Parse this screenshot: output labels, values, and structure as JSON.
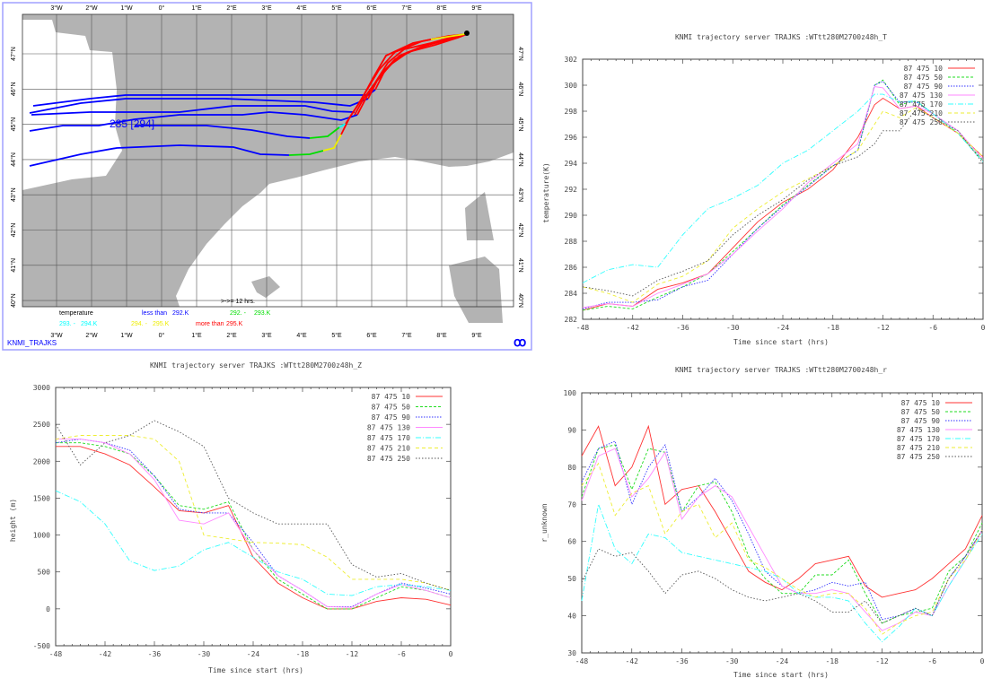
{
  "map": {
    "lon_labels": [
      "3°W",
      "2°W",
      "1°W",
      "0°",
      "1°E",
      "2°E",
      "3°E",
      "4°E",
      "5°E",
      "6°E",
      "7°E",
      "8°E",
      "9°E"
    ],
    "lat_labels": [
      "47°N",
      "46°N",
      "45°N",
      "44°N",
      "43°N",
      "42°N",
      "41°N",
      "40°N"
    ],
    "start_label": "285 [294]",
    "arrow_note": ">->= 12 hrs.",
    "legend": {
      "title": "temperature",
      "less_than": "less than",
      "less_than_value": "292.K",
      "range1": "292. -",
      "range1_end": "293.K",
      "range2": "293. -",
      "range2_end": "294.K",
      "range3": "294. -",
      "range3_end": "295.K",
      "more_than": "more than",
      "more_than_value": "295.K"
    },
    "footer": "KNMI_TRAJKS",
    "colors": {
      "land": "#b3b3b3",
      "sea": "#ffffff",
      "traj_low": "#0000ff",
      "traj_high": "#ff0000",
      "green": "#00dd00",
      "cyan": "#00ffff",
      "yellow": "#eeee00",
      "frame": "#a0a0ff"
    }
  },
  "legend_labels": [
    "87 475 10",
    "87 475 50",
    "87 475 90",
    "87 475 130",
    "87 475 170",
    "87 475 210",
    "87 475 250"
  ],
  "series_colors": [
    "#ff3333",
    "#22dd22",
    "#3333ff",
    "#ff88ff",
    "#33ffff",
    "#eeee33",
    "#555555"
  ],
  "chart_data": [
    {
      "type": "line",
      "title": "KNMI trajectory server TRAJKS :WTtt280M2700z48h_T",
      "xlabel": "Time since start (hrs)",
      "ylabel": "temperature(K)",
      "xlim": [
        -48,
        0
      ],
      "ylim": [
        282,
        302
      ],
      "xticks": [
        -48,
        -42,
        -36,
        -30,
        -24,
        -18,
        -12,
        -6,
        0
      ],
      "yticks": [
        282,
        284,
        286,
        288,
        290,
        292,
        294,
        296,
        298,
        300,
        302
      ],
      "legend": "top-right",
      "x": [
        -48,
        -45,
        -42,
        -39,
        -36,
        -33,
        -30,
        -27,
        -24,
        -21,
        -18,
        -15,
        -13,
        -12,
        -10,
        -8,
        -6,
        -3,
        0
      ],
      "series": [
        {
          "name": "87 475 10",
          "values": [
            282.7,
            283.2,
            283.0,
            284.3,
            284.8,
            285.5,
            287.5,
            289.5,
            291.0,
            292.0,
            293.5,
            296.0,
            298.5,
            299.0,
            298.2,
            298.4,
            297.5,
            296.3,
            294.5
          ]
        },
        {
          "name": "87 475 50",
          "values": [
            282.7,
            283.0,
            282.8,
            283.7,
            284.5,
            285.5,
            287.2,
            289.0,
            290.8,
            292.3,
            293.8,
            295.0,
            300.0,
            300.4,
            298.5,
            298.8,
            297.8,
            296.3,
            294.2
          ]
        },
        {
          "name": "87 475 90",
          "values": [
            282.8,
            283.3,
            283.3,
            283.5,
            284.5,
            285.0,
            287.0,
            289.0,
            290.7,
            292.2,
            293.8,
            295.0,
            300.0,
            300.3,
            298.7,
            298.7,
            297.8,
            296.5,
            294.3
          ]
        },
        {
          "name": "87 475 130",
          "values": [
            282.9,
            283.2,
            283.0,
            284.0,
            284.7,
            285.5,
            287.0,
            288.8,
            290.5,
            292.5,
            294.0,
            295.5,
            299.9,
            299.8,
            298.2,
            298.4,
            297.8,
            296.5,
            294.3
          ]
        },
        {
          "name": "87 475 170",
          "values": [
            284.8,
            285.8,
            286.2,
            286.0,
            288.5,
            290.5,
            291.3,
            292.3,
            294.0,
            295.0,
            296.5,
            298.0,
            299.3,
            299.3,
            298.7,
            298.8,
            297.8,
            296.3,
            294.1
          ]
        },
        {
          "name": "87 475 210",
          "values": [
            284.5,
            284.0,
            283.3,
            284.7,
            285.3,
            286.5,
            289.0,
            290.5,
            291.8,
            292.8,
            293.8,
            295.0,
            297.0,
            298.0,
            297.5,
            298.3,
            297.5,
            296.3,
            294.5
          ]
        },
        {
          "name": "87 475 250",
          "values": [
            284.5,
            284.2,
            283.8,
            285.0,
            285.7,
            286.5,
            288.5,
            290.0,
            291.2,
            292.7,
            293.8,
            294.5,
            295.5,
            296.5,
            296.5,
            298.2,
            297.5,
            296.5,
            294.0
          ]
        }
      ]
    },
    {
      "type": "line",
      "title": "KNMI trajectory server TRAJKS :WTtt280M2700z48h_Z",
      "xlabel": "Time since start (hrs)",
      "ylabel": "height (m)",
      "xlim": [
        -48,
        0
      ],
      "ylim": [
        -500,
        3000
      ],
      "xticks": [
        -48,
        -42,
        -36,
        -30,
        -24,
        -18,
        -12,
        -6,
        0
      ],
      "yticks": [
        -500,
        0,
        500,
        1000,
        1500,
        2000,
        2500,
        3000
      ],
      "legend": "top-right",
      "x": [
        -48,
        -45,
        -42,
        -39,
        -36,
        -33,
        -30,
        -27,
        -24,
        -21,
        -18,
        -15,
        -12,
        -9,
        -6,
        -3,
        0
      ],
      "series": [
        {
          "name": "87 475 10",
          "values": [
            2200,
            2200,
            2100,
            1950,
            1650,
            1330,
            1300,
            1400,
            700,
            350,
            150,
            0,
            0,
            100,
            150,
            130,
            50
          ]
        },
        {
          "name": "87 475 50",
          "values": [
            2250,
            2250,
            2200,
            2100,
            1800,
            1400,
            1350,
            1450,
            800,
            400,
            200,
            0,
            0,
            150,
            300,
            250,
            150
          ]
        },
        {
          "name": "87 475 90",
          "values": [
            2250,
            2300,
            2250,
            2150,
            1800,
            1350,
            1300,
            1300,
            900,
            450,
            250,
            30,
            30,
            200,
            350,
            280,
            200
          ]
        },
        {
          "name": "87 475 130",
          "values": [
            2300,
            2300,
            2250,
            2100,
            1750,
            1200,
            1150,
            1300,
            800,
            450,
            250,
            30,
            20,
            200,
            330,
            250,
            150
          ]
        },
        {
          "name": "87 475 170",
          "values": [
            1600,
            1450,
            1150,
            650,
            520,
            580,
            800,
            900,
            700,
            500,
            400,
            200,
            180,
            300,
            330,
            300,
            250
          ]
        },
        {
          "name": "87 475 210",
          "values": [
            2300,
            2350,
            2350,
            2350,
            2300,
            2000,
            1000,
            950,
            900,
            890,
            870,
            700,
            400,
            400,
            400,
            350,
            250
          ]
        },
        {
          "name": "87 475 250",
          "values": [
            2500,
            1950,
            2250,
            2350,
            2550,
            2400,
            2200,
            1500,
            1300,
            1150,
            1150,
            1150,
            600,
            430,
            480,
            350,
            250
          ]
        }
      ]
    },
    {
      "type": "line",
      "title": "KNMI trajectory server TRAJKS :WTtt280M2700z48h_r",
      "xlabel": "Time since start (hrs)",
      "ylabel": "r_unknown",
      "xlim": [
        -48,
        0
      ],
      "ylim": [
        30,
        100
      ],
      "xticks": [
        -48,
        -42,
        -36,
        -30,
        -24,
        -18,
        -12,
        -6,
        0
      ],
      "yticks": [
        30,
        40,
        50,
        60,
        70,
        80,
        90,
        100
      ],
      "legend": "top-right",
      "x": [
        -48,
        -46,
        -44,
        -42,
        -40,
        -38,
        -36,
        -34,
        -32,
        -30,
        -28,
        -26,
        -24,
        -22,
        -20,
        -18,
        -16,
        -14,
        -12,
        -10,
        -8,
        -6,
        -4,
        -2,
        0
      ],
      "series": [
        {
          "name": "87 475 10",
          "values": [
            83,
            91,
            75,
            80,
            91,
            70,
            74,
            75,
            68,
            60,
            52,
            49,
            47,
            50,
            54,
            55,
            56,
            48,
            45,
            46,
            47,
            50,
            54,
            58,
            67
          ]
        },
        {
          "name": "87 475 50",
          "values": [
            72,
            85,
            86,
            74,
            85,
            84,
            68,
            75,
            76,
            68,
            56,
            50,
            46,
            46,
            51,
            51,
            55,
            46,
            38,
            40,
            41,
            42,
            52,
            56,
            65
          ]
        },
        {
          "name": "87 475 90",
          "values": [
            76,
            85,
            87,
            70,
            80,
            86,
            68,
            72,
            77,
            71,
            62,
            52,
            48,
            46,
            47,
            49,
            48,
            49,
            39,
            40,
            42,
            40,
            50,
            56,
            63
          ]
        },
        {
          "name": "87 475 130",
          "values": [
            71,
            83,
            85,
            72,
            77,
            84,
            66,
            72,
            75,
            72,
            64,
            56,
            48,
            46,
            46,
            47,
            46,
            41,
            36,
            38,
            41,
            40,
            48,
            55,
            63
          ]
        },
        {
          "name": "87 475 170",
          "values": [
            44,
            70,
            58,
            54,
            62,
            61,
            57,
            56,
            55,
            54,
            53,
            52,
            50,
            46,
            45,
            45,
            44,
            38,
            33,
            37,
            42,
            40,
            48,
            55,
            62
          ]
        },
        {
          "name": "87 475 210",
          "values": [
            75,
            81,
            67,
            73,
            75,
            62,
            68,
            70,
            61,
            65,
            55,
            53,
            50,
            47,
            45,
            46,
            46,
            42,
            35,
            38,
            40,
            41,
            50,
            55,
            63
          ]
        },
        {
          "name": "87 475 250",
          "values": [
            49,
            58,
            56,
            57,
            52,
            46,
            51,
            52,
            50,
            47,
            45,
            44,
            45,
            46,
            44,
            41,
            41,
            44,
            38,
            40,
            42,
            40,
            50,
            56,
            63
          ]
        }
      ]
    }
  ]
}
